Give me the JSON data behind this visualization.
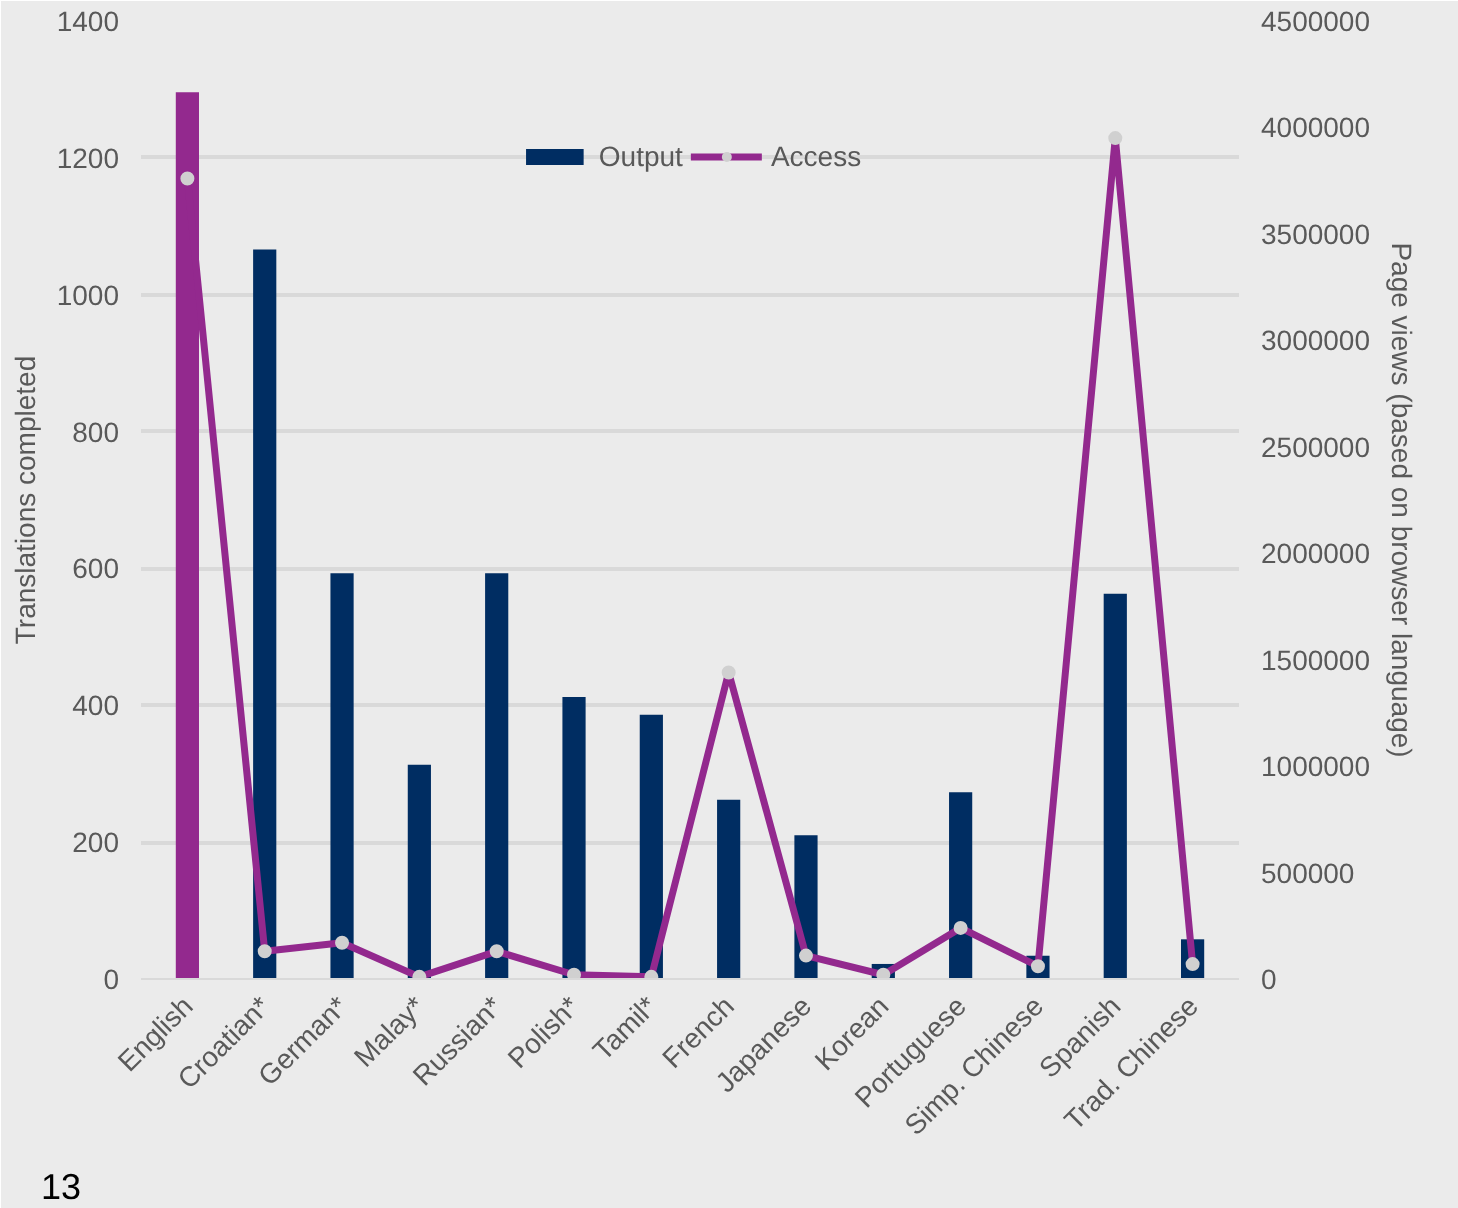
{
  "chart_data": {
    "type": "bar",
    "categories": [
      "English",
      "Croatian*",
      "German*",
      "Malay*",
      "Russian*",
      "Polish*",
      "Tamil*",
      "French",
      "Japanese",
      "Korean",
      "Portuguese",
      "Simp. Chinese",
      "Spanish",
      "Trad. Chinese"
    ],
    "series": [
      {
        "name": "Output",
        "color": "#002d62",
        "colors": [
          "#93298e",
          "#002d62",
          "#002d62",
          "#002d62",
          "#002d62",
          "#002d62",
          "#002d62",
          "#002d62",
          "#002d62",
          "#002d62",
          "#002d62",
          "#002d62",
          "#002d62",
          "#002d62"
        ],
        "values": [
          1296,
          1066,
          593,
          313,
          593,
          412,
          386,
          262,
          210,
          22,
          273,
          34,
          563,
          58
        ]
      },
      {
        "name": "Access",
        "type": "line",
        "axis": "y2",
        "color": "#93298e",
        "values": [
          3760000,
          130000,
          170000,
          10000,
          130000,
          20000,
          10000,
          1440000,
          110000,
          20000,
          240000,
          60000,
          3950000,
          70000
        ]
      }
    ],
    "ylabel": "Translations completed",
    "y2label": "Page views (based on browser language)",
    "ylim": [
      0,
      1400
    ],
    "yticks": [
      0,
      200,
      400,
      600,
      800,
      1000,
      1200,
      1400
    ],
    "y2lim": [
      0,
      4500000
    ],
    "y2ticks": [
      0,
      500000,
      1000000,
      1500000,
      2000000,
      2500000,
      3000000,
      3500000,
      4000000,
      4500000
    ],
    "grid": "y",
    "legend": "top",
    "marker": "circle",
    "annotations": [
      "13"
    ]
  }
}
